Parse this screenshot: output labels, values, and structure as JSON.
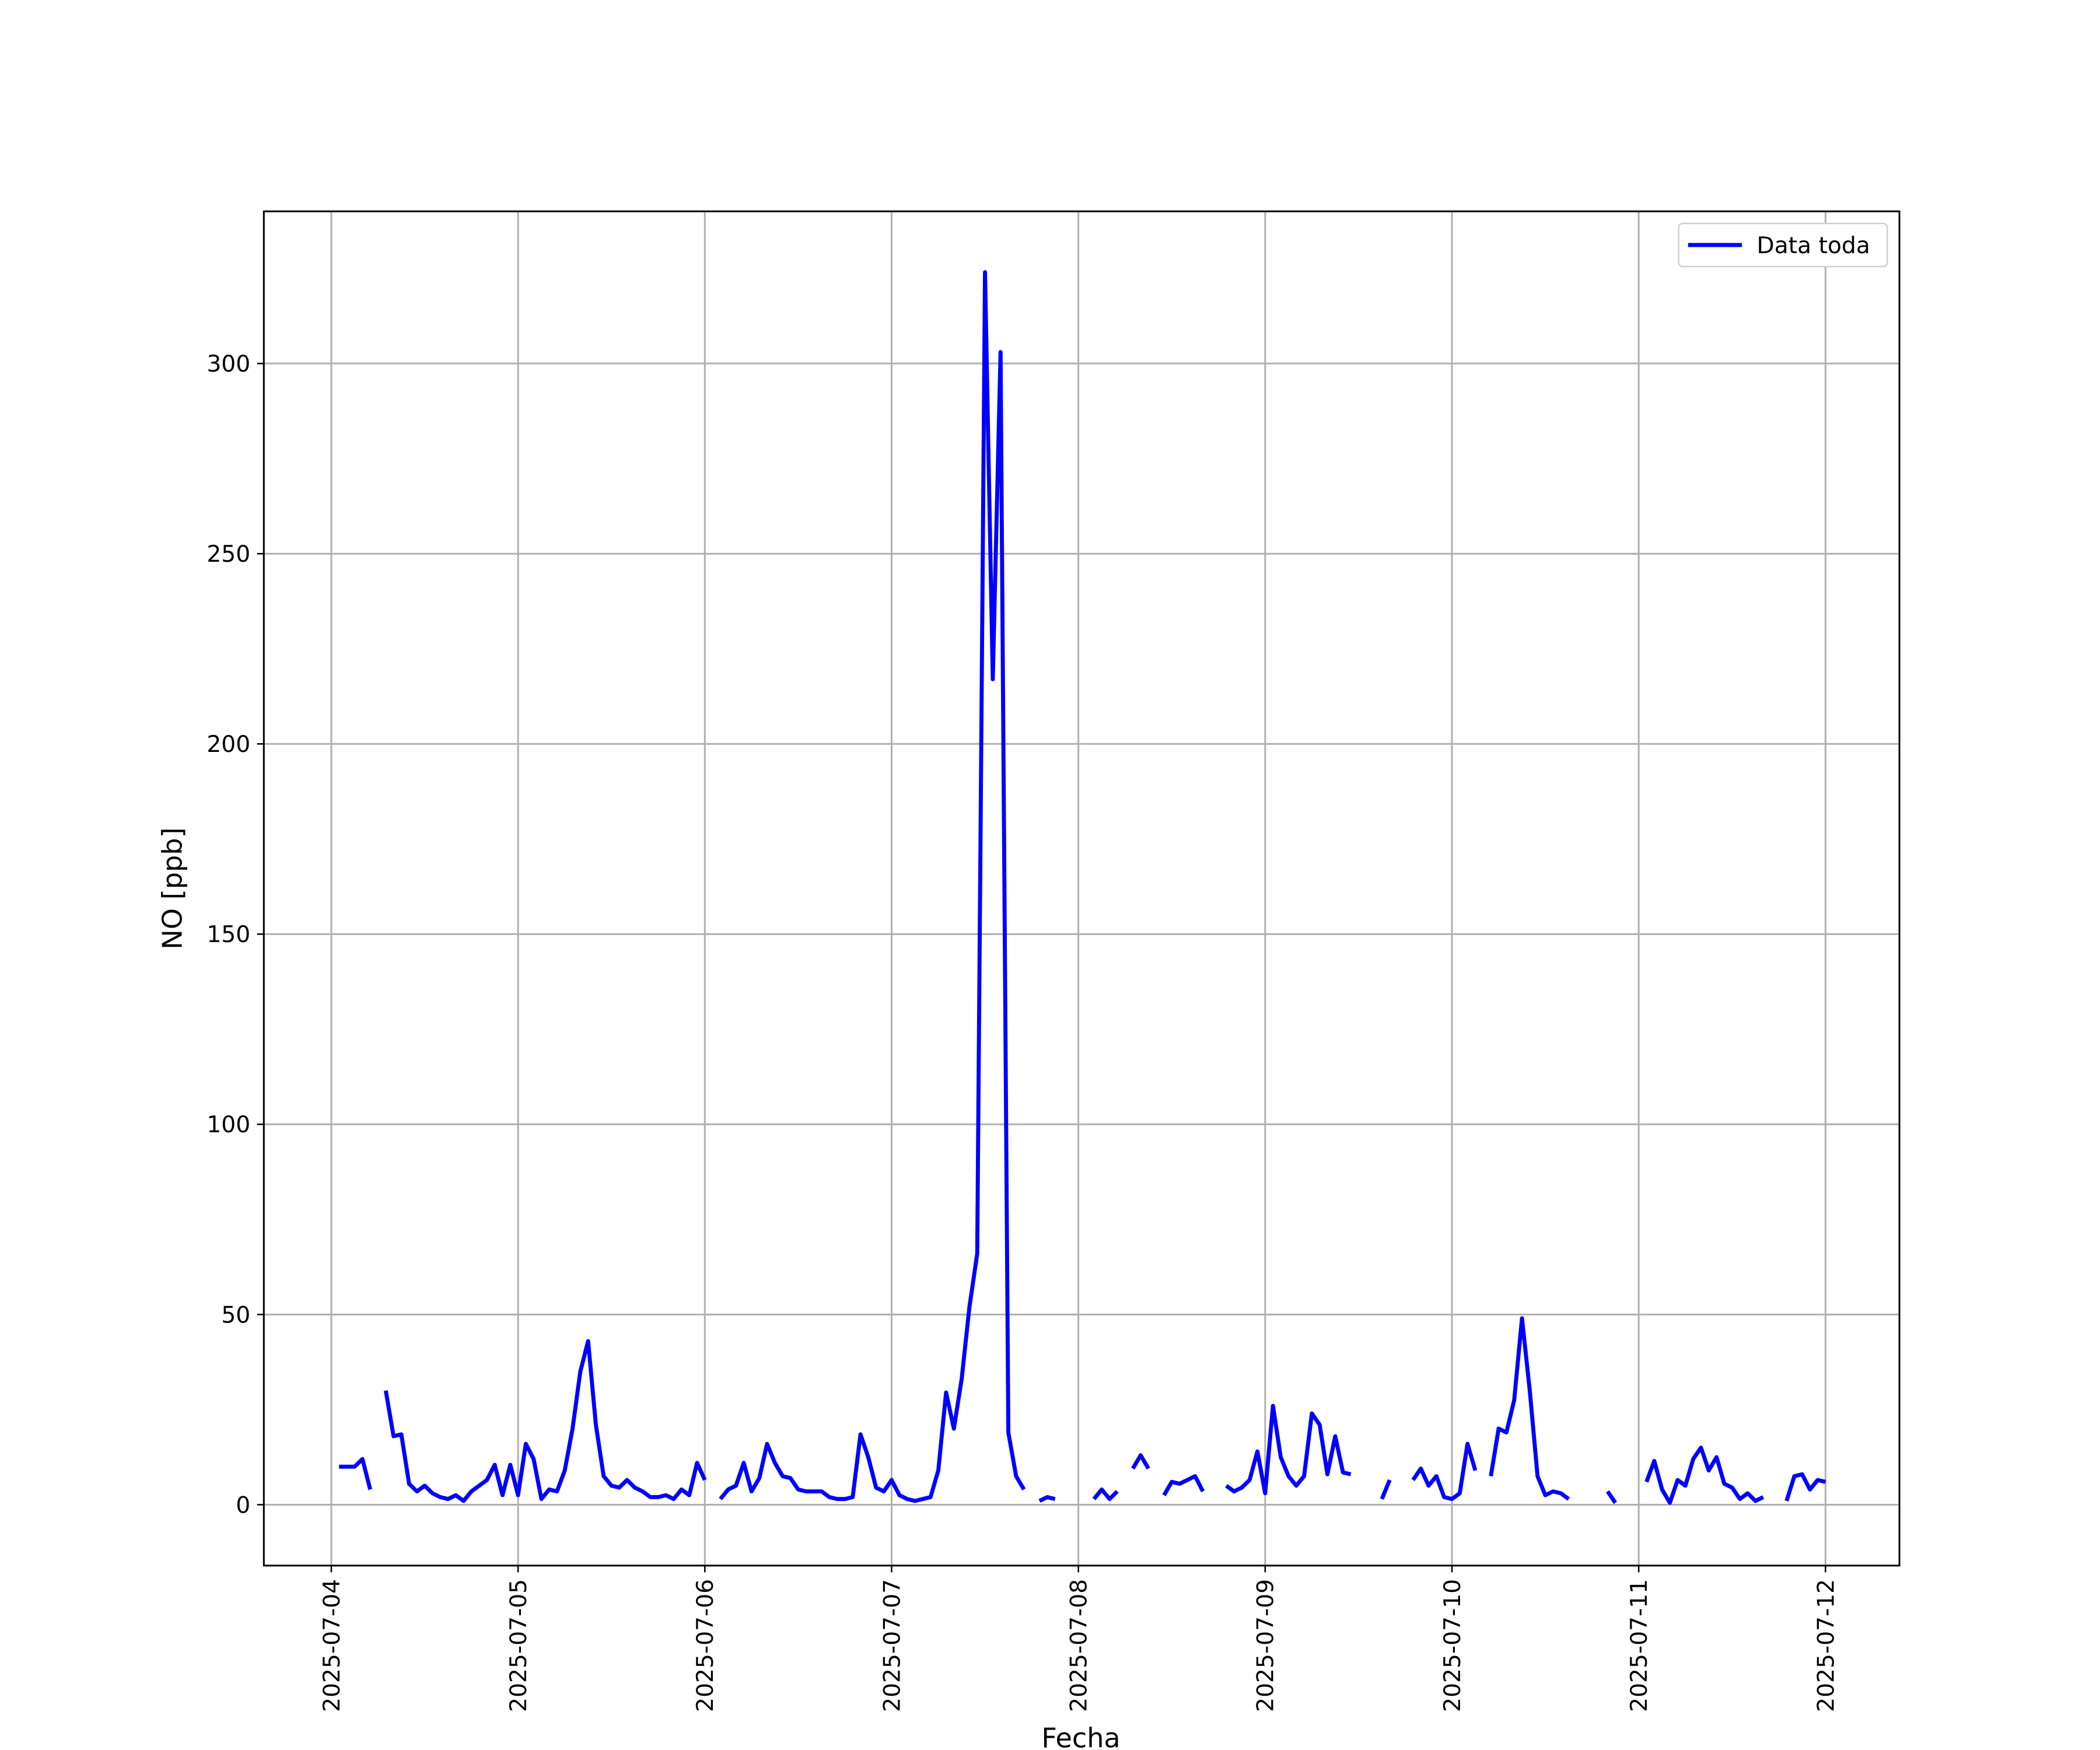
{
  "chart_data": {
    "type": "line",
    "x_label": "Fecha",
    "y_label": "NO [ppb]",
    "x": [
      "2025-07-04 00:00",
      "2025-07-04 01:00",
      "2025-07-04 02:00",
      "2025-07-04 03:00",
      "2025-07-04 04:00",
      "2025-07-04 05:00",
      "2025-07-04 06:00",
      "2025-07-04 07:00",
      "2025-07-04 08:00",
      "2025-07-04 09:00",
      "2025-07-04 10:00",
      "2025-07-04 11:00",
      "2025-07-04 12:00",
      "2025-07-04 13:00",
      "2025-07-04 14:00",
      "2025-07-04 15:00",
      "2025-07-04 16:00",
      "2025-07-04 17:00",
      "2025-07-04 18:00",
      "2025-07-04 19:00",
      "2025-07-04 20:00",
      "2025-07-04 21:00",
      "2025-07-04 22:00",
      "2025-07-04 23:00",
      "2025-07-05 00:00",
      "2025-07-05 01:00",
      "2025-07-05 02:00",
      "2025-07-05 03:00",
      "2025-07-05 04:00",
      "2025-07-05 05:00",
      "2025-07-05 06:00",
      "2025-07-05 07:00",
      "2025-07-05 08:00",
      "2025-07-05 09:00",
      "2025-07-05 10:00",
      "2025-07-05 11:00",
      "2025-07-05 12:00",
      "2025-07-05 13:00",
      "2025-07-05 14:00",
      "2025-07-05 15:00",
      "2025-07-05 16:00",
      "2025-07-05 17:00",
      "2025-07-05 18:00",
      "2025-07-05 19:00",
      "2025-07-05 20:00",
      "2025-07-05 21:00",
      "2025-07-05 22:00",
      "2025-07-05 23:00",
      "2025-07-06 00:00",
      "2025-07-06 01:00",
      "2025-07-06 02:00",
      "2025-07-06 03:00",
      "2025-07-06 04:00",
      "2025-07-06 05:00",
      "2025-07-06 06:00",
      "2025-07-06 07:00",
      "2025-07-06 08:00",
      "2025-07-06 09:00",
      "2025-07-06 10:00",
      "2025-07-06 11:00",
      "2025-07-06 12:00",
      "2025-07-06 13:00",
      "2025-07-06 14:00",
      "2025-07-06 15:00",
      "2025-07-06 16:00",
      "2025-07-06 17:00",
      "2025-07-06 18:00",
      "2025-07-06 19:00",
      "2025-07-06 20:00",
      "2025-07-06 21:00",
      "2025-07-06 22:00",
      "2025-07-06 23:00",
      "2025-07-07 00:00",
      "2025-07-07 01:00",
      "2025-07-07 02:00",
      "2025-07-07 03:00",
      "2025-07-07 04:00",
      "2025-07-07 05:00",
      "2025-07-07 06:00",
      "2025-07-07 07:00",
      "2025-07-07 08:00",
      "2025-07-07 09:00",
      "2025-07-07 10:00",
      "2025-07-07 11:00",
      "2025-07-07 12:00",
      "2025-07-07 13:00",
      "2025-07-07 14:00",
      "2025-07-07 15:00",
      "2025-07-07 16:00",
      "2025-07-07 17:00",
      "2025-07-07 18:00",
      "2025-07-07 19:00",
      "2025-07-07 20:00",
      "2025-07-07 21:00",
      "2025-07-07 22:00",
      "2025-07-07 23:00",
      "2025-07-08 00:00",
      "2025-07-08 01:00",
      "2025-07-08 02:00",
      "2025-07-08 03:00",
      "2025-07-08 04:00",
      "2025-07-08 05:00",
      "2025-07-08 06:00",
      "2025-07-08 07:00",
      "2025-07-08 08:00",
      "2025-07-08 09:00",
      "2025-07-08 10:00",
      "2025-07-08 11:00",
      "2025-07-08 12:00",
      "2025-07-08 13:00",
      "2025-07-08 14:00",
      "2025-07-08 15:00",
      "2025-07-08 16:00",
      "2025-07-08 17:00",
      "2025-07-08 18:00",
      "2025-07-08 19:00",
      "2025-07-08 20:00",
      "2025-07-08 21:00",
      "2025-07-08 22:00",
      "2025-07-08 23:00",
      "2025-07-09 00:00",
      "2025-07-09 01:00",
      "2025-07-09 02:00",
      "2025-07-09 03:00",
      "2025-07-09 04:00",
      "2025-07-09 05:00",
      "2025-07-09 06:00",
      "2025-07-09 07:00",
      "2025-07-09 08:00",
      "2025-07-09 09:00",
      "2025-07-09 10:00",
      "2025-07-09 11:00",
      "2025-07-09 12:00",
      "2025-07-09 13:00",
      "2025-07-09 14:00",
      "2025-07-09 15:00",
      "2025-07-09 16:00",
      "2025-07-09 17:00",
      "2025-07-09 18:00",
      "2025-07-09 19:00",
      "2025-07-09 20:00",
      "2025-07-09 21:00",
      "2025-07-09 22:00",
      "2025-07-09 23:00",
      "2025-07-10 00:00",
      "2025-07-10 01:00",
      "2025-07-10 02:00",
      "2025-07-10 03:00",
      "2025-07-10 04:00",
      "2025-07-10 05:00",
      "2025-07-10 06:00",
      "2025-07-10 07:00",
      "2025-07-10 08:00",
      "2025-07-10 09:00",
      "2025-07-10 10:00",
      "2025-07-10 11:00",
      "2025-07-10 12:00",
      "2025-07-10 13:00",
      "2025-07-10 14:00",
      "2025-07-10 15:00",
      "2025-07-10 16:00",
      "2025-07-10 17:00",
      "2025-07-10 18:00",
      "2025-07-10 19:00",
      "2025-07-10 20:00",
      "2025-07-10 21:00",
      "2025-07-10 22:00",
      "2025-07-10 23:00",
      "2025-07-11 00:00",
      "2025-07-11 01:00",
      "2025-07-11 02:00",
      "2025-07-11 03:00",
      "2025-07-11 04:00",
      "2025-07-11 05:00",
      "2025-07-11 06:00",
      "2025-07-11 07:00",
      "2025-07-11 08:00",
      "2025-07-11 09:00",
      "2025-07-11 10:00",
      "2025-07-11 11:00",
      "2025-07-11 12:00",
      "2025-07-11 13:00",
      "2025-07-11 14:00",
      "2025-07-11 15:00",
      "2025-07-11 16:00",
      "2025-07-11 17:00",
      "2025-07-11 18:00",
      "2025-07-11 19:00",
      "2025-07-11 20:00",
      "2025-07-11 21:00",
      "2025-07-11 22:00",
      "2025-07-11 23:00",
      "2025-07-12 00:00"
    ],
    "series": [
      {
        "name": "Data toda",
        "color": "#0000ff",
        "values": [
          null,
          10,
          10,
          10,
          12,
          4,
          null,
          30,
          18,
          18.5,
          5.5,
          3.5,
          5,
          3,
          2,
          1.5,
          2.5,
          1,
          3.5,
          5,
          6.5,
          10.5,
          2.5,
          10.5,
          2.5,
          16,
          12,
          1.5,
          4,
          3.5,
          9,
          20,
          35,
          43,
          21,
          7.5,
          5,
          4.5,
          6.5,
          4.5,
          3.5,
          2,
          2,
          2.5,
          1.5,
          4,
          2.5,
          11,
          6.5,
          null,
          1.5,
          4,
          5,
          11,
          3.5,
          7,
          16,
          11,
          7.5,
          7,
          4,
          3.5,
          3.5,
          3.5,
          2,
          1.5,
          1.5,
          2,
          18.5,
          12.5,
          4.5,
          3.5,
          6.5,
          2.5,
          1.5,
          1,
          1.5,
          2,
          9,
          29.5,
          20,
          33,
          52,
          66,
          324,
          217,
          303,
          19,
          7.5,
          4,
          null,
          1,
          2,
          1.5,
          null,
          null,
          null,
          null,
          1.5,
          4,
          1.5,
          3.5,
          null,
          9.5,
          13,
          9.5,
          null,
          2.5,
          6,
          5.5,
          6.5,
          7.5,
          3.5,
          null,
          null,
          5,
          3.5,
          4.5,
          6.5,
          14,
          3,
          26,
          12.5,
          7.5,
          5,
          7.5,
          24,
          21,
          8,
          18,
          8.5,
          8,
          null,
          null,
          null,
          1.5,
          6.5,
          null,
          null,
          6.5,
          9.5,
          5,
          7.5,
          2,
          1.5,
          3,
          16,
          9,
          null,
          7.5,
          20,
          19,
          27.5,
          49,
          30,
          7.5,
          2.5,
          3.5,
          3,
          1.5,
          null,
          null,
          null,
          null,
          3.5,
          0.5,
          null,
          null,
          null,
          6,
          11.5,
          4,
          0.5,
          6.5,
          5,
          12,
          15,
          9,
          12.5,
          5.5,
          4.5,
          1.5,
          3,
          1,
          2,
          null,
          null,
          1,
          7.5,
          8,
          4,
          6.5,
          6
        ]
      }
    ],
    "xlim": [
      "2025-07-03 15:20",
      "2025-07-12 09:30"
    ],
    "xticks": [
      "2025-07-04",
      "2025-07-05",
      "2025-07-06",
      "2025-07-07",
      "2025-07-08",
      "2025-07-09",
      "2025-07-10",
      "2025-07-11",
      "2025-07-12"
    ],
    "ylim": [
      -16,
      340
    ],
    "yticks": [
      0,
      50,
      100,
      150,
      200,
      250,
      300
    ],
    "grid": true,
    "legend": "upper right"
  }
}
